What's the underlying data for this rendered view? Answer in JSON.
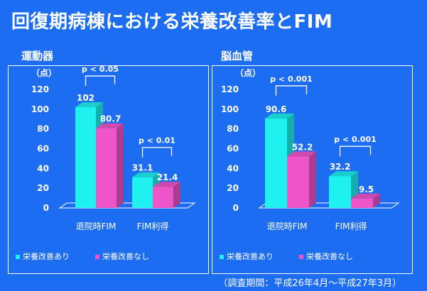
{
  "title": "回復期病棟における栄養改善率とFIM",
  "note": "（調査期間：平成26年4月～平成27年3月）",
  "colors": {
    "background": "#1c6df2",
    "series1": "#1ff0f0",
    "series2": "#ee55c8",
    "text": "#ffffff"
  },
  "chart_data": [
    {
      "type": "bar",
      "title": "運動器",
      "ylabel": "（点）",
      "ylim": [
        0,
        120
      ],
      "yticks": [
        0,
        20,
        40,
        60,
        80,
        100,
        120
      ],
      "categories": [
        "退院時FIM",
        "FIM利得"
      ],
      "series": [
        {
          "name": "栄養改善あり",
          "values": [
            102,
            31.1
          ],
          "labels": [
            "102",
            "31.1"
          ]
        },
        {
          "name": "栄養改善なし",
          "values": [
            80.7,
            21.4
          ],
          "labels": [
            "80.7",
            "21.4"
          ]
        }
      ],
      "annotations": [
        "p < 0.05",
        "p < 0.01"
      ],
      "legend": "bottom"
    },
    {
      "type": "bar",
      "title": "脳血管",
      "ylabel": "（点）",
      "ylim": [
        0,
        120
      ],
      "yticks": [
        0,
        20,
        40,
        60,
        80,
        100,
        120
      ],
      "categories": [
        "退院時FIM",
        "FIM利得"
      ],
      "series": [
        {
          "name": "栄養改善あり",
          "values": [
            90.6,
            32.2
          ],
          "labels": [
            "90.6",
            "32.2"
          ]
        },
        {
          "name": "栄養改善なし",
          "values": [
            52.2,
            9.5
          ],
          "labels": [
            "52.2",
            "9.5"
          ]
        }
      ],
      "annotations": [
        "p < 0.001",
        "p < 0.001"
      ],
      "legend": "bottom"
    }
  ]
}
